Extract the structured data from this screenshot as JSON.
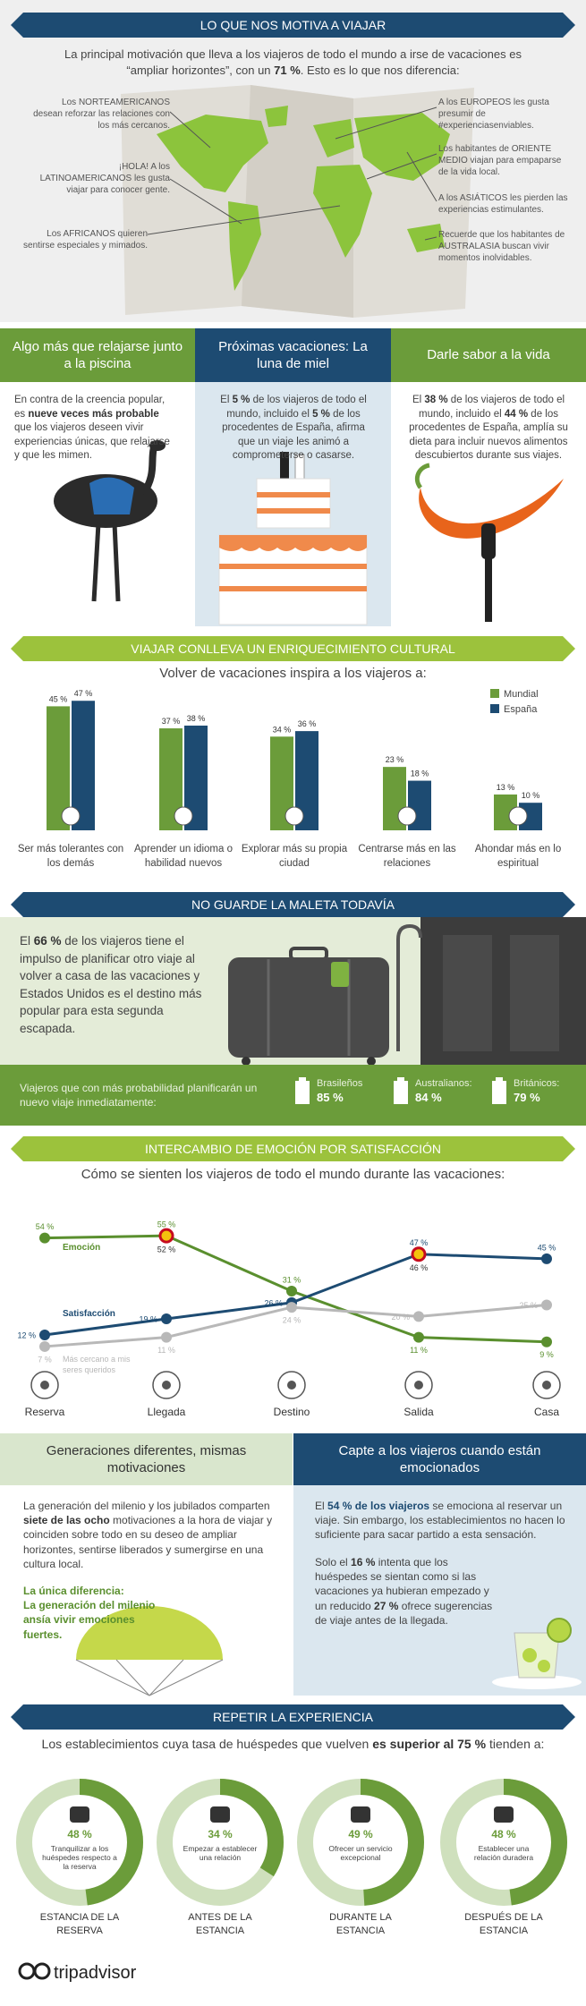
{
  "motivation": {
    "title": "LO QUE NOS MOTIVA A VIAJAR",
    "intro": [
      "La principal motivación que lleva a los viajeros de todo el mundo a irse de vacaciones es “ampliar horizontes”, con un ",
      "71 %",
      ". Esto es lo que nos diferencia:"
    ],
    "notes_left": [
      "Los NORTEAMERICANOS desean reforzar las relaciones con los más cercanos.",
      "¡HOLA! A los LATINOAMERICANOS les gusta viajar para conocer gente.",
      "Los AFRICANOS quieren sentirse especiales y mimados."
    ],
    "notes_right": [
      "A los EUROPEOS les gusta presumir de #experienciasenviables.",
      "Los habitantes de ORIENTE MEDIO viajan para empaparse de la vida local.",
      "A los ASIÁTICOS les pierden las experiencias estimulantes.",
      "Recuerde que los habitantes de AUSTRALASIA buscan vivir momentos inolvidables."
    ]
  },
  "columns": [
    {
      "title": "Algo más que relajarse junto a la piscina",
      "text": [
        "En contra de la creencia popular, es ",
        "nueve veces más probable",
        " que los viajeros deseen vivir experiencias únicas, que relajarse y que les mimen."
      ]
    },
    {
      "title": "Próximas vacaciones: La luna de miel",
      "text": [
        "El ",
        "5 %",
        " de los viajeros de todo el mundo, incluido el ",
        "5 %",
        " de los procedentes de España, afirma que un viaje les animó a comprometerse o casarse."
      ]
    },
    {
      "title": "Darle sabor a la vida",
      "text": [
        "El ",
        "38 %",
        " de los viajeros de todo el mundo, incluido el ",
        "44 %",
        " de los procedentes de España, amplía su dieta para incluir nuevos alimentos descubiertos durante sus viajes."
      ]
    }
  ],
  "luggage": {
    "title": "NO GUARDE LA MALETA TODAVÍA",
    "text": [
      "El ",
      "66 %",
      " de los viajeros tiene el impulso de planificar otro viaje al volver a casa de las vacaciones y Estados Unidos es el destino más popular para esta segunda escapada."
    ],
    "footer_text": "Viajeros que con más probabilidad planificarán un nuevo viaje inmediatamente:",
    "items": [
      {
        "label": "Brasileños",
        "value": "85 %"
      },
      {
        "label": "Australianos:",
        "value": "84 %"
      },
      {
        "label": "Británicos:",
        "value": "79 %"
      }
    ]
  },
  "generations": {
    "title": "Generaciones diferentes, mismas motivaciones",
    "text": [
      "La generación del milenio y los jubilados comparten ",
      "siete de las ocho",
      " motivaciones a la hora de viajar y coinciden sobre todo en su deseo de ampliar horizontes, sentirse liberados y sumergirse en una cultura local."
    ],
    "highlight": [
      "La única diferencia:",
      "La generación del milenio ansía vivir emociones fuertes."
    ]
  },
  "capture": {
    "title": "Capte a los viajeros cuando están emocionados",
    "text1": [
      "El ",
      "54 % de los viajeros",
      " se emociona al reservar un viaje. Sin embargo, los establecimientos no hacen lo suficiente para sacar partido a esta sensación."
    ],
    "text2": [
      "Solo el ",
      "16 %",
      " intenta que los huéspedes se sientan como si las vacaciones ya hubieran empezado y un reducido ",
      "27 %",
      " ofrece sugerencias de viaje antes de la llegada."
    ]
  },
  "footer": {
    "logo": "tripadvisor"
  },
  "chart_data": [
    {
      "type": "bar",
      "title": "VIAJAR CONLLEVA UN ENRIQUECIMIENTO CULTURAL",
      "subtitle": "Volver de vacaciones inspira a los viajeros a:",
      "categories": [
        "Ser más tolerantes con los demás",
        "Aprender un idioma o habilidad nuevos",
        "Explorar más su propia ciudad",
        "Centrarse más en las relaciones",
        "Ahondar más en lo espiritual"
      ],
      "series": [
        {
          "name": "Mundial",
          "color": "#6b9c3a",
          "values": [
            45,
            37,
            34,
            23,
            13
          ],
          "value_labels": [
            "45 %",
            "37 %",
            "34 %",
            "23 %",
            "13 %"
          ]
        },
        {
          "name": "España",
          "color": "#1d4b72",
          "values": [
            47,
            38,
            36,
            18,
            10
          ],
          "value_labels": [
            "47 %",
            "38 %",
            "36 %",
            "18 %",
            "10 %"
          ]
        }
      ],
      "legend": "top-right"
    },
    {
      "type": "line",
      "title": "INTERCAMBIO DE EMOCIÓN POR SATISFACCIÓN",
      "subtitle": "Cómo se sienten los viajeros de todo el mundo durante las vacaciones:",
      "categories": [
        "Reserva",
        "Llegada",
        "Destino",
        "Salida",
        "Casa"
      ],
      "series": [
        {
          "name": "Emoción",
          "color": "#5a8f2e",
          "values": [
            54,
            55,
            31,
            11,
            9
          ],
          "value_labels": [
            "54 %",
            "55 %",
            "31 %",
            "11 %",
            "9 %"
          ],
          "spain_values": [
            null,
            52,
            null,
            null,
            null
          ],
          "spain_value_labels": [
            null,
            "52 %",
            null,
            null,
            null
          ]
        },
        {
          "name": "Satisfacción",
          "color": "#1d4b72",
          "values": [
            12,
            19,
            26,
            47,
            45
          ],
          "value_labels": [
            "12 %",
            "19 %",
            "26 %",
            "47 %",
            "45 %"
          ],
          "spain_values": [
            null,
            null,
            null,
            46,
            null
          ],
          "spain_value_labels": [
            null,
            null,
            null,
            "46 %",
            null
          ]
        },
        {
          "name": "Más cercano a mis seres queridos",
          "color": "#b8b8b8",
          "values": [
            7,
            11,
            24,
            20,
            25
          ],
          "value_labels": [
            "7 %",
            "11 %",
            "24 %",
            "20 %",
            "25 %"
          ]
        }
      ]
    },
    {
      "type": "donut",
      "title": "REPETIR LA EXPERIENCIA",
      "subtitle": [
        "Los establecimientos cuya tasa de huéspedes que vuelven ",
        "es superior al 75 %",
        " tienden a:"
      ],
      "categories": [
        "ESTANCIA DE LA RESERVA",
        "ANTES DE LA ESTANCIA",
        "DURANTE LA ESTANCIA",
        "DESPUÉS DE LA ESTANCIA"
      ],
      "values": [
        48,
        34,
        49,
        48
      ],
      "value_labels": [
        "48 %",
        "34 %",
        "49 %",
        "48 %"
      ],
      "descriptions": [
        "Tranquilizar a los huéspedes respecto a la reserva",
        "Empezar a establecer una relación",
        "Ofrecer un servicio excepcional",
        "Establecer una relación duradera"
      ],
      "color": "#6b9c3a"
    }
  ]
}
